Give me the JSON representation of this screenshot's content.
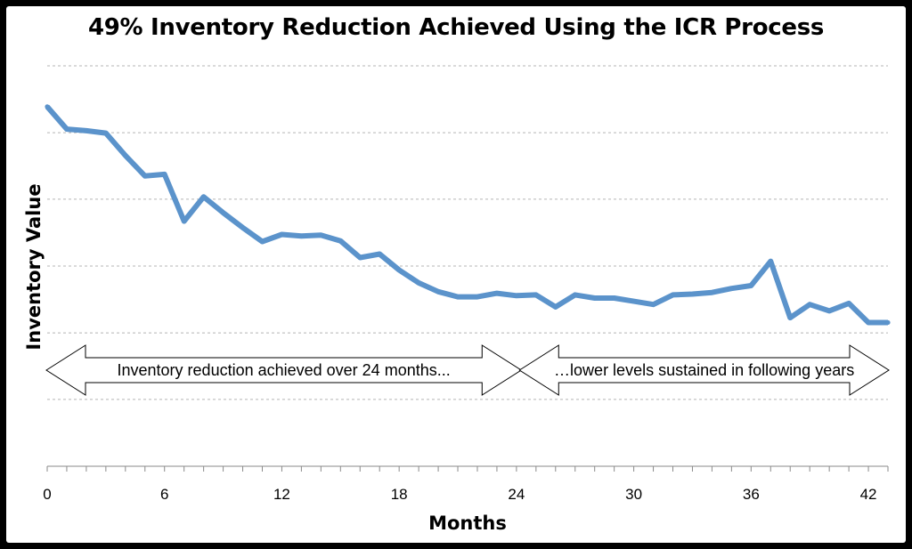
{
  "chart_data": {
    "type": "line",
    "title": "49% Inventory Reduction Achieved Using the ICR Process",
    "xlabel": "Months",
    "ylabel": "Inventory Value",
    "xlim": [
      0,
      43
    ],
    "ylim": [
      0,
      100
    ],
    "x_ticks": [
      0,
      6,
      12,
      18,
      24,
      30,
      36,
      42
    ],
    "y_gridlines": [
      16.7,
      33.3,
      50,
      66.7,
      83.3,
      100
    ],
    "grid": "horizontal-dashed",
    "line_color": "#5b93cb",
    "series": [
      {
        "x": [
          0,
          1,
          2,
          3,
          4,
          5,
          6,
          7,
          8,
          9,
          10,
          11,
          12,
          13,
          14,
          15,
          16,
          17,
          18,
          19,
          20,
          21,
          22,
          23,
          24,
          25,
          26,
          27,
          28,
          29,
          30,
          31,
          32,
          33,
          34,
          35,
          36,
          37,
          38,
          39,
          40,
          41,
          42,
          43
        ],
        "values": [
          89.8,
          84.2,
          83.8,
          83.2,
          77.6,
          72.5,
          72.9,
          61.2,
          67.3,
          63.3,
          59.6,
          56.1,
          57.9,
          57.5,
          57.7,
          56.3,
          52.1,
          53.0,
          49.0,
          45.8,
          43.6,
          42.3,
          42.3,
          43.2,
          42.6,
          42.8,
          39.8,
          42.8,
          42.0,
          42.0,
          41.2,
          40.4,
          42.8,
          43.0,
          43.4,
          44.4,
          45.1,
          51.2,
          37.1,
          40.4,
          38.8,
          40.7,
          35.9,
          35.9
        ]
      }
    ],
    "annotations": [
      {
        "text": "Inventory reduction achieved over 24 months...",
        "x_start": 0,
        "x_end": 24.2,
        "direction": "left"
      },
      {
        "text": "…lower levels sustained in following years",
        "x_start": 24.2,
        "x_end": 43,
        "direction": "right"
      }
    ]
  }
}
